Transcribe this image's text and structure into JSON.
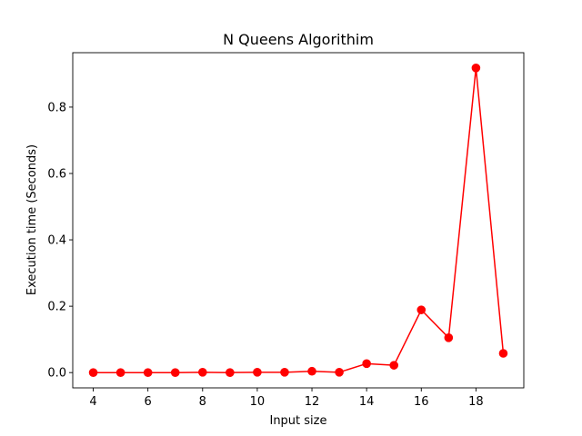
{
  "chart_data": {
    "type": "line",
    "title": "N Queens Algorithim",
    "xlabel": "Input size",
    "ylabel": "Execution time (Seconds)",
    "xlim": [
      3.25,
      19.75
    ],
    "ylim": [
      -0.046,
      0.964
    ],
    "xticks": [
      4,
      6,
      8,
      10,
      12,
      14,
      16,
      18
    ],
    "yticks": [
      0.0,
      0.2,
      0.4,
      0.6,
      0.8
    ],
    "ytick_labels": [
      "0.0",
      "0.2",
      "0.4",
      "0.6",
      "0.8"
    ],
    "grid": false,
    "series": [
      {
        "color": "#ff0000",
        "marker": "circle",
        "x": [
          4,
          5,
          6,
          7,
          8,
          9,
          10,
          11,
          12,
          13,
          14,
          15,
          16,
          17,
          18,
          19
        ],
        "y": [
          0.0,
          0.0,
          0.0,
          0.0,
          0.001,
          0.0,
          0.001,
          0.001,
          0.004,
          0.001,
          0.027,
          0.022,
          0.189,
          0.105,
          0.918,
          0.058
        ]
      }
    ]
  }
}
